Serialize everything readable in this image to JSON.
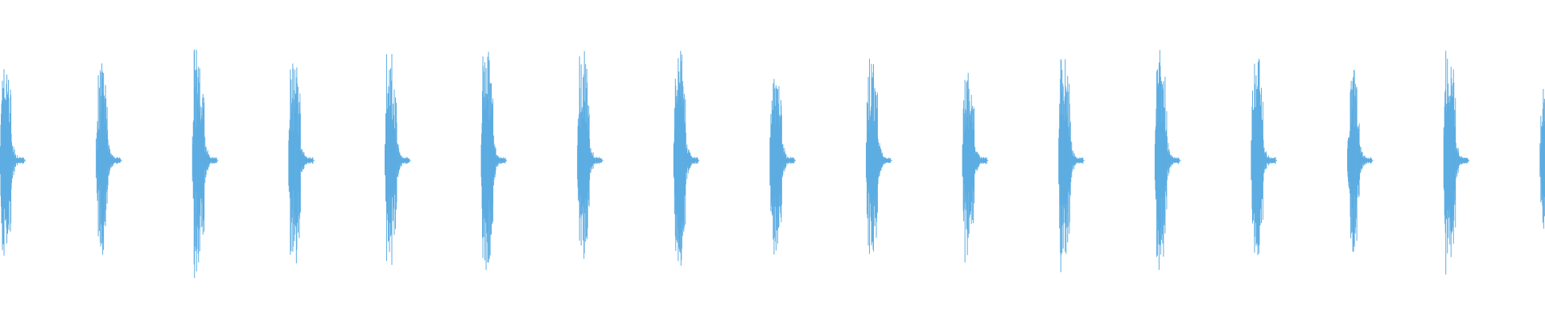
{
  "waveform": {
    "color": "#5dade2",
    "background": "#ffffff",
    "burst_count": 17,
    "burst_period_fraction_of_width": 0.0623,
    "burst_peak_amplitudes": [
      0.57,
      0.54,
      0.66,
      0.61,
      0.6,
      0.69,
      0.62,
      0.68,
      0.59,
      0.64,
      0.58,
      0.63,
      0.62,
      0.6,
      0.56,
      0.66,
      0.45
    ]
  }
}
